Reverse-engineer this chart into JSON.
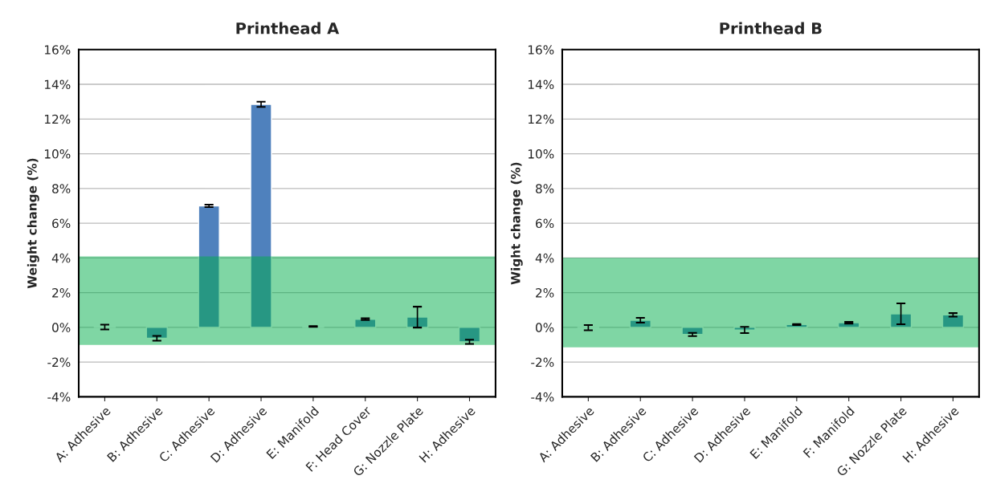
{
  "chart_data": [
    {
      "type": "bar",
      "title": "Printhead A",
      "ylabel": "Weight change (%)",
      "categories": [
        "A: Adhesive",
        "B: Adhesive",
        "C: Adhesive",
        "D: Adhesive",
        "E: Manifold",
        "F: Head Cover",
        "G: Nozzle Plate",
        "H: Adhesive"
      ],
      "values": [
        0.02,
        -0.63,
        7.0,
        12.85,
        0.05,
        0.47,
        0.59,
        -0.83
      ],
      "errors": [
        0.14,
        0.14,
        0.07,
        0.15,
        0.02,
        0.05,
        0.6,
        0.12
      ],
      "color": "#4f81bd",
      "ylim": [
        -4,
        16
      ],
      "yticks": [
        {
          "value": -4,
          "label": "-4%"
        },
        {
          "value": -2,
          "label": "-2%"
        },
        {
          "value": 0,
          "label": "0%"
        },
        {
          "value": 2,
          "label": "2%"
        },
        {
          "value": 4,
          "label": "4%"
        },
        {
          "value": 6,
          "label": "6%"
        },
        {
          "value": 8,
          "label": "8%"
        },
        {
          "value": 10,
          "label": "10%"
        },
        {
          "value": 12,
          "label": "12%"
        },
        {
          "value": 14,
          "label": "14%"
        },
        {
          "value": 16,
          "label": "16%"
        }
      ],
      "grid": "y",
      "bands": [
        {
          "axis": "y",
          "from": -1.01,
          "to": 4.09,
          "color": "#00ae49"
        }
      ]
    },
    {
      "type": "bar",
      "title": "Printhead B",
      "ylabel": "Wight change (%)",
      "categories": [
        "A: Adhesive",
        "B: Adhesive",
        "C: Adhesive",
        "D: Adhesive",
        "E: Manifold",
        "F: Manifold",
        "G: Nozzle Plate",
        "H: Adhesive"
      ],
      "values": [
        -0.02,
        0.41,
        -0.41,
        -0.15,
        0.16,
        0.27,
        0.78,
        0.72
      ],
      "errors": [
        0.15,
        0.14,
        0.09,
        0.18,
        0.03,
        0.05,
        0.6,
        0.1
      ],
      "color": "#4f81bd",
      "ylim": [
        -4,
        16
      ],
      "yticks": [
        {
          "value": -4,
          "label": "-4%"
        },
        {
          "value": -2,
          "label": "-2%"
        },
        {
          "value": 0,
          "label": "0%"
        },
        {
          "value": 2,
          "label": "2%"
        },
        {
          "value": 4,
          "label": "4%"
        },
        {
          "value": 6,
          "label": "6%"
        },
        {
          "value": 8,
          "label": "8%"
        },
        {
          "value": 10,
          "label": "10%"
        },
        {
          "value": 12,
          "label": "12%"
        },
        {
          "value": 14,
          "label": "14%"
        },
        {
          "value": 16,
          "label": "16%"
        }
      ],
      "grid": "y",
      "bands": [
        {
          "axis": "y",
          "from": -1.15,
          "to": 4.0,
          "color": "#00ae49"
        }
      ]
    }
  ]
}
